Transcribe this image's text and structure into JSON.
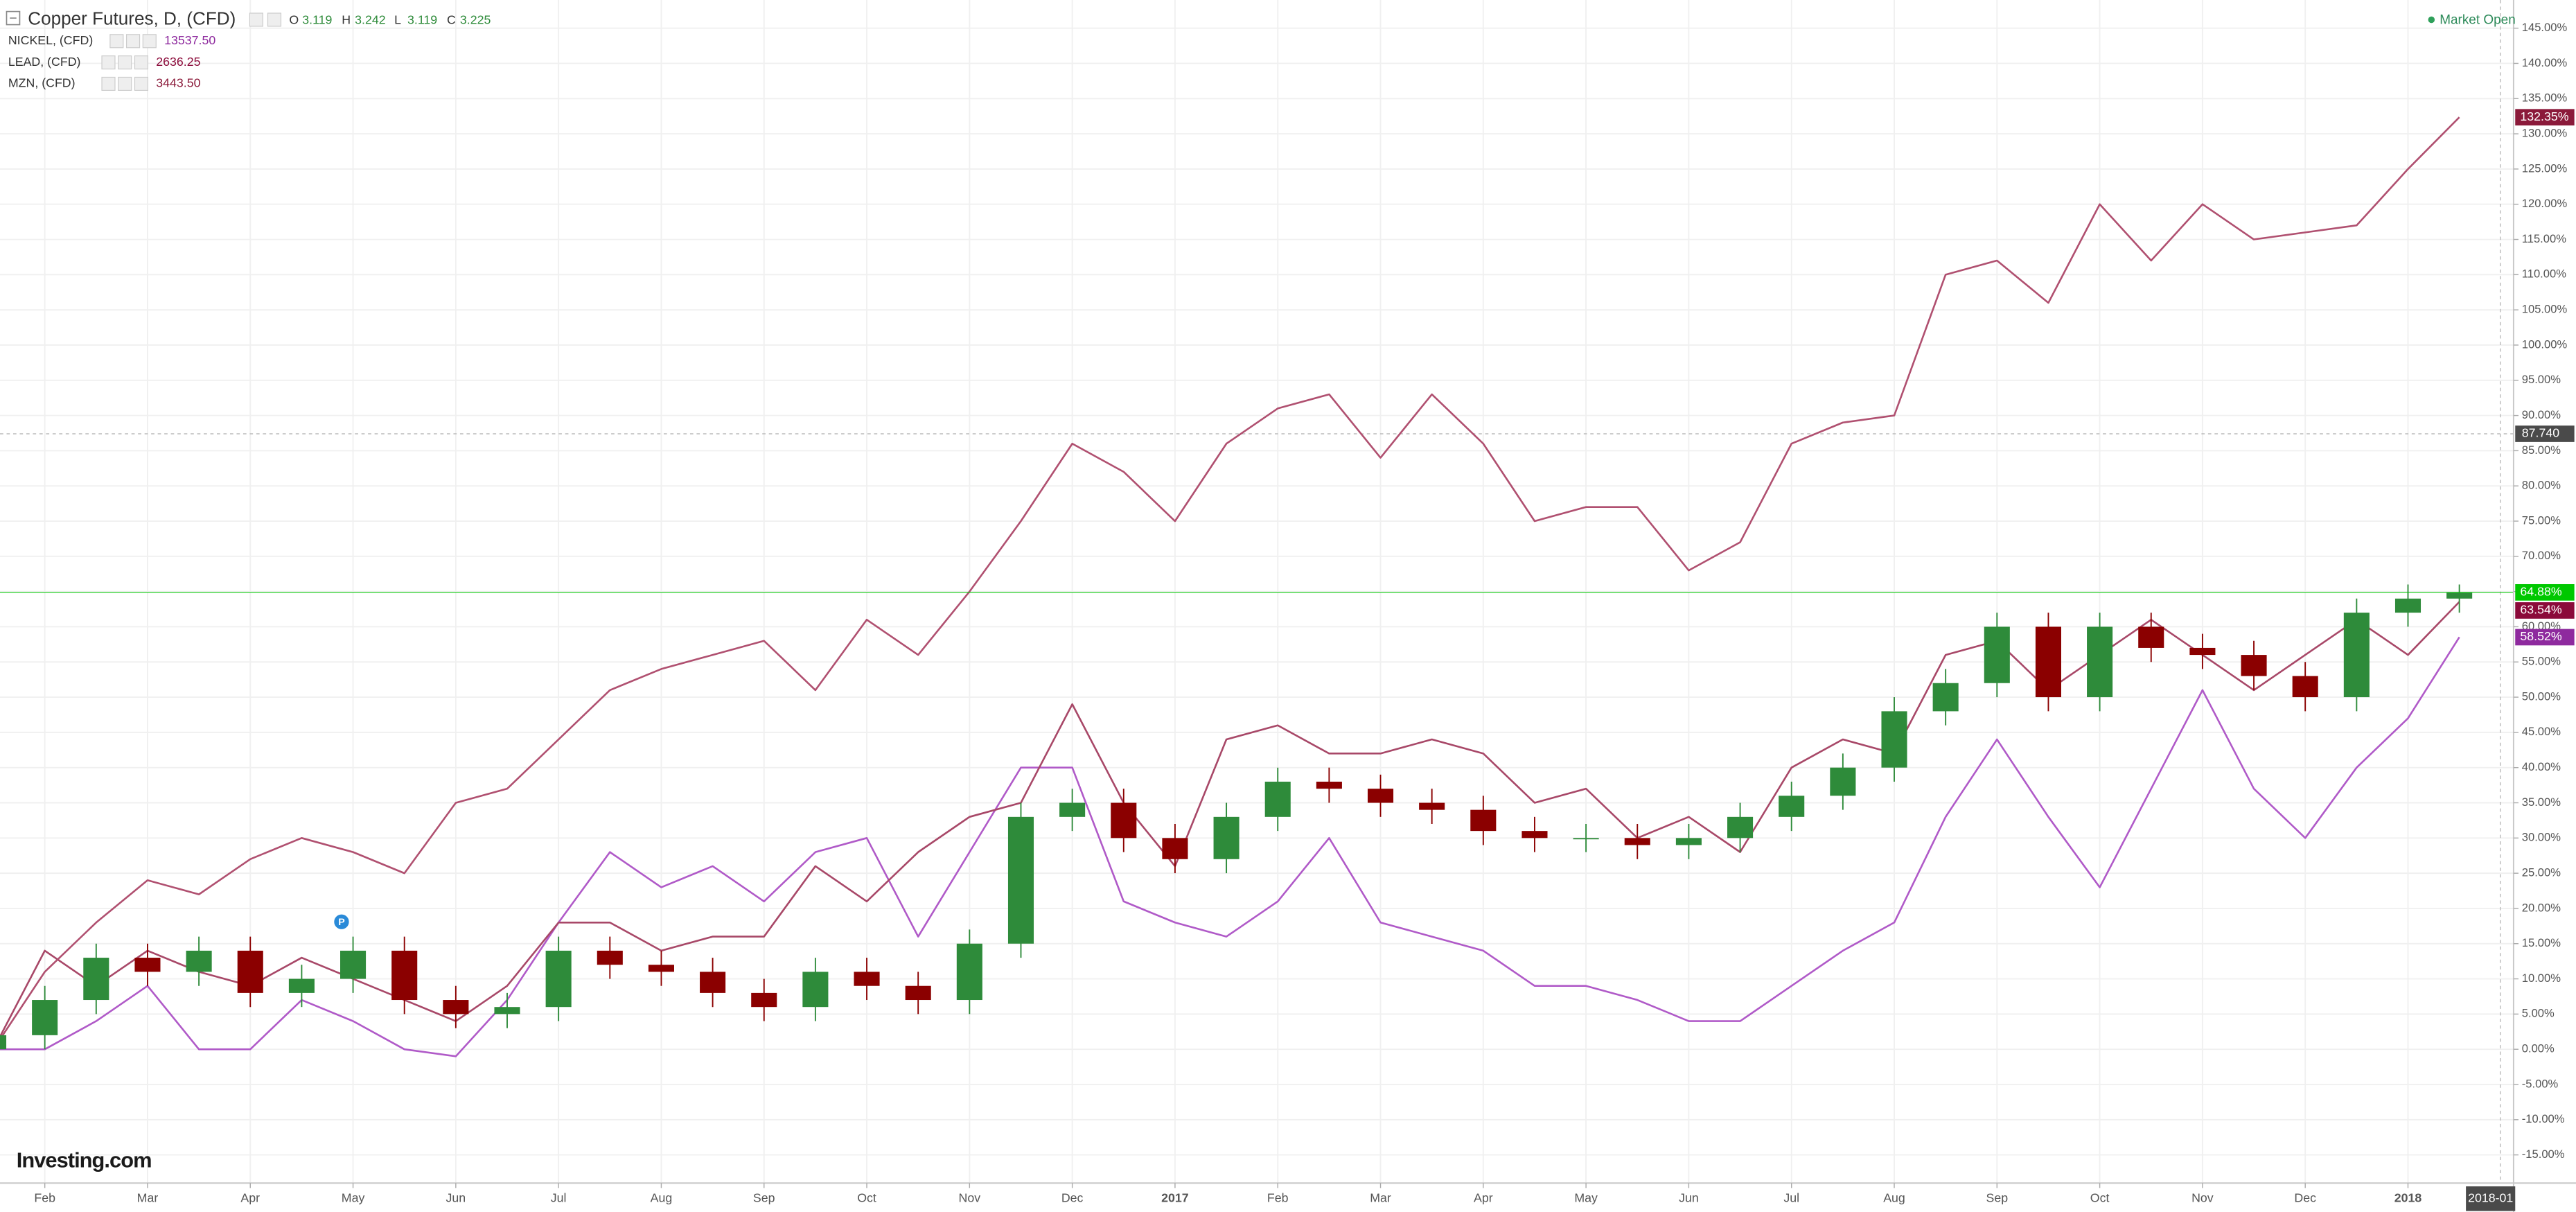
{
  "chart_data": {
    "type": "candlestick",
    "title": "Copper Futures, D, (CFD)",
    "ohlc": [
      {
        "label": "O",
        "value": 3.119
      },
      {
        "label": "H",
        "value": 3.242
      },
      {
        "label": "L",
        "value": 3.119
      },
      {
        "label": "C",
        "value": 3.225
      }
    ],
    "status": "Market Open",
    "watermark": "Investing.com",
    "marker": "P",
    "crosshair_value": "87.740",
    "crosshair_date": "2018-01",
    "categories": [
      null,
      "Feb",
      null,
      "Mar",
      null,
      "Apr",
      null,
      "May",
      null,
      "Jun",
      null,
      "Jul",
      null,
      "Aug",
      null,
      "Sep",
      null,
      "Oct",
      null,
      "Nov",
      null,
      "Dec",
      null,
      "2017",
      null,
      "Feb",
      null,
      "Mar",
      null,
      "Apr",
      null,
      "May",
      null,
      "Jun",
      null,
      "Jul",
      null,
      "Aug",
      null,
      "Sep",
      null,
      "Oct",
      null,
      "Nov",
      null,
      "Dec",
      null,
      "2018",
      null
    ],
    "candles": {
      "up_color": "#2e8b3a",
      "down_color": "#8b0000",
      "label_color": "#00c800",
      "open": [
        0,
        2,
        7,
        13,
        11,
        14,
        8,
        10,
        14,
        7,
        5,
        6,
        14,
        12,
        11,
        8,
        6,
        11,
        9,
        7,
        15,
        33,
        35,
        30,
        27,
        33,
        38,
        37,
        35,
        34,
        31,
        30,
        30,
        29,
        30,
        33,
        36,
        40,
        48,
        52,
        60,
        50,
        60,
        57,
        56,
        53,
        50,
        62,
        64
      ],
      "high": [
        4,
        9,
        15,
        15,
        16,
        16,
        12,
        16,
        16,
        9,
        8,
        16,
        16,
        14,
        13,
        10,
        13,
        13,
        11,
        17,
        35,
        37,
        37,
        32,
        35,
        40,
        40,
        39,
        37,
        36,
        33,
        32,
        32,
        32,
        35,
        38,
        42,
        50,
        54,
        62,
        62,
        62,
        62,
        59,
        58,
        55,
        64,
        66,
        66
      ],
      "low": [
        -2,
        0,
        5,
        9,
        9,
        6,
        6,
        8,
        5,
        3,
        3,
        4,
        10,
        9,
        6,
        4,
        4,
        7,
        5,
        5,
        13,
        31,
        28,
        25,
        25,
        31,
        35,
        33,
        32,
        29,
        28,
        28,
        27,
        27,
        28,
        31,
        34,
        38,
        46,
        50,
        48,
        48,
        55,
        54,
        51,
        48,
        48,
        60,
        62
      ],
      "close": [
        2,
        7,
        13,
        11,
        14,
        8,
        10,
        14,
        7,
        5,
        6,
        14,
        12,
        11,
        8,
        6,
        11,
        9,
        7,
        15,
        33,
        35,
        30,
        27,
        33,
        38,
        37,
        35,
        34,
        31,
        30,
        30,
        29,
        30,
        33,
        36,
        40,
        48,
        52,
        60,
        50,
        60,
        57,
        56,
        53,
        50,
        62,
        64,
        64.88
      ],
      "last_label": "64.88%"
    },
    "series": [
      {
        "name": "NICKEL, (CFD)",
        "last_price": "13537.50",
        "color": "#b05ac8",
        "label_color": "#8e2a9e",
        "values": [
          0,
          0,
          4,
          9,
          0,
          0,
          7,
          4,
          0,
          -1,
          7,
          18,
          28,
          23,
          26,
          21,
          28,
          30,
          16,
          28,
          40,
          40,
          21,
          18,
          16,
          21,
          30,
          18,
          16,
          14,
          9,
          9,
          7,
          4,
          4,
          9,
          14,
          18,
          33,
          44,
          33,
          23,
          37,
          51,
          37,
          30,
          40,
          47,
          58.52
        ],
        "last_label": "58.52%"
      },
      {
        "name": "LEAD, (CFD)",
        "last_price": "2636.25",
        "color": "#a84868",
        "label_color": "#8b0a3a",
        "values": [
          0,
          14,
          9,
          14,
          11,
          9,
          13,
          10,
          7,
          4,
          9,
          18,
          18,
          14,
          16,
          16,
          26,
          21,
          28,
          33,
          35,
          49,
          35,
          26,
          44,
          46,
          42,
          42,
          44,
          42,
          35,
          37,
          30,
          33,
          28,
          40,
          44,
          42,
          56,
          58,
          51,
          56,
          61,
          56,
          51,
          56,
          61,
          56,
          63.54
        ],
        "last_label": "63.54%"
      },
      {
        "name": "MZN, (CFD)",
        "last_price": "3443.50",
        "color": "#b05070",
        "label_color": "#8b1a3a",
        "values": [
          0,
          11,
          18,
          24,
          22,
          27,
          30,
          28,
          25,
          35,
          37,
          44,
          51,
          54,
          56,
          58,
          51,
          61,
          56,
          65,
          75,
          86,
          82,
          75,
          86,
          91,
          93,
          84,
          93,
          86,
          75,
          77,
          77,
          68,
          72,
          86,
          89,
          90,
          110,
          112,
          106,
          120,
          112,
          120,
          115,
          116,
          117,
          125,
          132.35
        ],
        "last_label": "132.35%"
      }
    ],
    "ylim": [
      -19,
      149
    ],
    "yticks": [
      {
        "value": -15,
        "label": "-15.00%"
      },
      {
        "value": -10,
        "label": "-10.00%"
      },
      {
        "value": -5,
        "label": "-5.00%"
      },
      {
        "value": 0,
        "label": "0.00%"
      },
      {
        "value": 5,
        "label": "5.00%"
      },
      {
        "value": 10,
        "label": "10.00%"
      },
      {
        "value": 15,
        "label": "15.00%"
      },
      {
        "value": 20,
        "label": "20.00%"
      },
      {
        "value": 25,
        "label": "25.00%"
      },
      {
        "value": 30,
        "label": "30.00%"
      },
      {
        "value": 35,
        "label": "35.00%"
      },
      {
        "value": 40,
        "label": "40.00%"
      },
      {
        "value": 45,
        "label": "45.00%"
      },
      {
        "value": 50,
        "label": "50.00%"
      },
      {
        "value": 55,
        "label": "55.00%"
      },
      {
        "value": 60,
        "label": "60.00%"
      },
      {
        "value": 65,
        "label": "65.00%"
      },
      {
        "value": 70,
        "label": "70.00%"
      },
      {
        "value": 75,
        "label": "75.00%"
      },
      {
        "value": 80,
        "label": "80.00%"
      },
      {
        "value": 85,
        "label": "85.00%"
      },
      {
        "value": 90,
        "label": "90.00%"
      },
      {
        "value": 95,
        "label": "95.00%"
      },
      {
        "value": 100,
        "label": "100.00%"
      },
      {
        "value": 105,
        "label": "105.00%"
      },
      {
        "value": 110,
        "label": "110.00%"
      },
      {
        "value": 115,
        "label": "115.00%"
      },
      {
        "value": 120,
        "label": "120.00%"
      },
      {
        "value": 125,
        "label": "125.00%"
      },
      {
        "value": 130,
        "label": "130.00%"
      },
      {
        "value": 135,
        "label": "135.00%"
      },
      {
        "value": 140,
        "label": "140.00%"
      },
      {
        "value": 145,
        "label": "145.00%"
      }
    ],
    "grid": true
  }
}
